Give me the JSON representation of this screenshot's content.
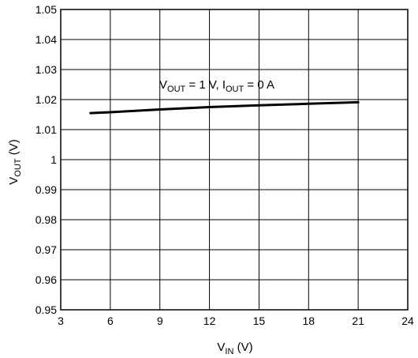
{
  "chart_data": {
    "type": "line",
    "xlabel": {
      "main": "V",
      "sub": "IN",
      "unit": " (V)"
    },
    "ylabel": {
      "main": "V",
      "sub": "OUT",
      "unit": " (V)"
    },
    "xlim": [
      3,
      24
    ],
    "ylim": [
      0.95,
      1.05
    ],
    "x_ticks": [
      "3",
      "6",
      "9",
      "12",
      "15",
      "18",
      "21",
      "24"
    ],
    "y_ticks": [
      "0.95",
      "0.96",
      "0.97",
      "0.98",
      "0.99",
      "1",
      "1.01",
      "1.02",
      "1.03",
      "1.04",
      "1.05"
    ],
    "grid": true,
    "annotation": {
      "v": "V",
      "vsub": "OUT",
      "vtext": " = 1 V, ",
      "i": "I",
      "isub": "OUT",
      "itext": " = 0 A"
    },
    "series": [
      {
        "color": "#000000",
        "x": [
          4.8,
          6,
          9,
          12,
          15,
          18,
          21
        ],
        "y": [
          1.0155,
          1.0158,
          1.0167,
          1.0175,
          1.0181,
          1.0186,
          1.0191
        ]
      }
    ]
  }
}
